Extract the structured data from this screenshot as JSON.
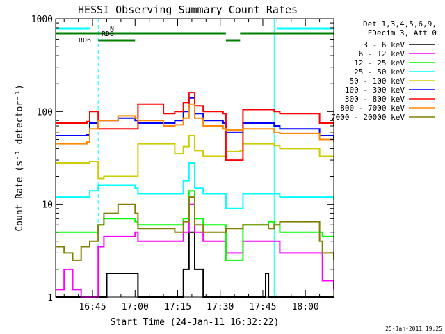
{
  "chart_data": {
    "type": "line",
    "title": "HESSI Observing Summary Count Rates",
    "xlabel": "Start Time (24-Jan-11 16:32:22)",
    "ylabel": "Count Rate (s⁻¹ detector⁻¹)",
    "yscale": "log",
    "ylim": [
      1,
      1000
    ],
    "xlim": [
      "16:32",
      "18:10"
    ],
    "xticks": [
      "16:45",
      "17:00",
      "17:15",
      "17:30",
      "17:45",
      "18:00"
    ],
    "yticks": [
      "1",
      "10",
      "100",
      "1000"
    ],
    "legend_header": [
      "Det 1,3,4,5,6,9,",
      "FDecim 3, Att 0"
    ],
    "legend_position": "right",
    "footer_timestamp": "25-Jan-2011 19:25",
    "flag_labels": {
      "N": "N",
      "RD0": "RD0",
      "RD6": "RD6"
    },
    "series": [
      {
        "name": "3 - 6 keV",
        "color": "#000000",
        "points": [
          [
            "16:32",
            1
          ],
          [
            "16:49",
            1
          ],
          [
            "16:50",
            1.8
          ],
          [
            "17:00",
            1.8
          ],
          [
            "17:01",
            1
          ],
          [
            "17:14",
            1
          ],
          [
            "17:17",
            2
          ],
          [
            "17:19",
            5
          ],
          [
            "17:21",
            2
          ],
          [
            "17:24",
            1
          ],
          [
            "17:45",
            1
          ],
          [
            "17:46",
            1.8
          ],
          [
            "17:47",
            1
          ],
          [
            "18:10",
            1
          ]
        ]
      },
      {
        "name": "6 - 12 keV",
        "color": "#ff00ff",
        "points": [
          [
            "16:32",
            1.2
          ],
          [
            "16:35",
            2
          ],
          [
            "16:38",
            1.2
          ],
          [
            "16:41",
            1
          ],
          [
            "16:45",
            1
          ],
          [
            "16:47",
            3.5
          ],
          [
            "16:49",
            4.5
          ],
          [
            "17:00",
            5
          ],
          [
            "17:01",
            4
          ],
          [
            "17:14",
            4
          ],
          [
            "17:17",
            5
          ],
          [
            "17:19",
            10
          ],
          [
            "17:21",
            5
          ],
          [
            "17:24",
            4
          ],
          [
            "17:31",
            4
          ],
          [
            "17:32",
            3
          ],
          [
            "17:37",
            3
          ],
          [
            "17:38",
            4
          ],
          [
            "17:49",
            4
          ],
          [
            "17:51",
            3
          ],
          [
            "18:05",
            3
          ],
          [
            "18:06",
            1.5
          ],
          [
            "18:10",
            1.2
          ]
        ]
      },
      {
        "name": "12 - 25 keV",
        "color": "#00ff00",
        "points": [
          [
            "16:32",
            5
          ],
          [
            "16:45",
            5
          ],
          [
            "16:47",
            6
          ],
          [
            "16:49",
            7
          ],
          [
            "17:00",
            6.5
          ],
          [
            "17:01",
            6
          ],
          [
            "17:14",
            6
          ],
          [
            "17:17",
            7
          ],
          [
            "17:19",
            14
          ],
          [
            "17:21",
            7
          ],
          [
            "17:24",
            6
          ],
          [
            "17:31",
            6
          ],
          [
            "17:32",
            2.5
          ],
          [
            "17:37",
            2.5
          ],
          [
            "17:38",
            6
          ],
          [
            "17:47",
            6.5
          ],
          [
            "17:49",
            6
          ],
          [
            "17:51",
            5
          ],
          [
            "18:05",
            5
          ],
          [
            "18:06",
            4.5
          ],
          [
            "18:10",
            4.5
          ]
        ]
      },
      {
        "name": "25 - 50 keV",
        "color": "#00ffff",
        "points": [
          [
            "16:32",
            12
          ],
          [
            "16:44",
            14
          ],
          [
            "16:47",
            16
          ],
          [
            "17:00",
            15
          ],
          [
            "17:01",
            13
          ],
          [
            "17:14",
            13
          ],
          [
            "17:17",
            18
          ],
          [
            "17:19",
            28
          ],
          [
            "17:21",
            15
          ],
          [
            "17:24",
            13
          ],
          [
            "17:31",
            13
          ],
          [
            "17:32",
            9
          ],
          [
            "17:37",
            9
          ],
          [
            "17:38",
            13
          ],
          [
            "17:47",
            13
          ],
          [
            "17:51",
            12
          ],
          [
            "18:00",
            12
          ],
          [
            "18:10",
            11
          ]
        ]
      },
      {
        "name": "50 - 100 keV",
        "color": "#cccc00",
        "points": [
          [
            "16:32",
            28
          ],
          [
            "16:44",
            29
          ],
          [
            "16:47",
            19
          ],
          [
            "16:49",
            20
          ],
          [
            "17:00",
            20
          ],
          [
            "17:01",
            45
          ],
          [
            "17:14",
            35
          ],
          [
            "17:17",
            42
          ],
          [
            "17:19",
            55
          ],
          [
            "17:21",
            38
          ],
          [
            "17:24",
            33
          ],
          [
            "17:31",
            33
          ],
          [
            "17:32",
            37
          ],
          [
            "17:37",
            38
          ],
          [
            "17:38",
            45
          ],
          [
            "17:47",
            45
          ],
          [
            "17:49",
            43
          ],
          [
            "17:51",
            40
          ],
          [
            "18:05",
            33
          ],
          [
            "18:10",
            32
          ]
        ]
      },
      {
        "name": "100 - 300 keV",
        "color": "#0000ff",
        "points": [
          [
            "16:32",
            55
          ],
          [
            "16:43",
            56
          ],
          [
            "16:44",
            75
          ],
          [
            "16:47",
            80
          ],
          [
            "16:54",
            85
          ],
          [
            "17:00",
            80
          ],
          [
            "17:01",
            75
          ],
          [
            "17:10",
            75
          ],
          [
            "17:14",
            80
          ],
          [
            "17:17",
            100
          ],
          [
            "17:19",
            140
          ],
          [
            "17:21",
            95
          ],
          [
            "17:24",
            80
          ],
          [
            "17:31",
            75
          ],
          [
            "17:32",
            60
          ],
          [
            "17:37",
            60
          ],
          [
            "17:38",
            75
          ],
          [
            "17:47",
            75
          ],
          [
            "17:49",
            70
          ],
          [
            "17:51",
            65
          ],
          [
            "18:05",
            55
          ],
          [
            "18:10",
            50
          ]
        ]
      },
      {
        "name": "300 - 800 keV",
        "color": "#ff0000",
        "points": [
          [
            "16:32",
            75
          ],
          [
            "16:43",
            78
          ],
          [
            "16:44",
            100
          ],
          [
            "16:47",
            65
          ],
          [
            "17:00",
            65
          ],
          [
            "17:01",
            120
          ],
          [
            "17:10",
            95
          ],
          [
            "17:14",
            100
          ],
          [
            "17:17",
            125
          ],
          [
            "17:19",
            160
          ],
          [
            "17:21",
            115
          ],
          [
            "17:24",
            100
          ],
          [
            "17:31",
            95
          ],
          [
            "17:32",
            30
          ],
          [
            "17:37",
            30
          ],
          [
            "17:38",
            105
          ],
          [
            "17:47",
            105
          ],
          [
            "17:49",
            100
          ],
          [
            "17:51",
            95
          ],
          [
            "18:05",
            75
          ],
          [
            "18:10",
            70
          ]
        ]
      },
      {
        "name": "800 - 7000 keV",
        "color": "#ff8800",
        "points": [
          [
            "16:32",
            45
          ],
          [
            "16:43",
            47
          ],
          [
            "16:44",
            65
          ],
          [
            "16:47",
            80
          ],
          [
            "16:54",
            90
          ],
          [
            "17:00",
            85
          ],
          [
            "17:01",
            80
          ],
          [
            "17:10",
            70
          ],
          [
            "17:14",
            72
          ],
          [
            "17:17",
            85
          ],
          [
            "17:19",
            120
          ],
          [
            "17:21",
            85
          ],
          [
            "17:24",
            70
          ],
          [
            "17:31",
            65
          ],
          [
            "17:32",
            63
          ],
          [
            "17:37",
            63
          ],
          [
            "17:38",
            65
          ],
          [
            "17:47",
            65
          ],
          [
            "17:49",
            60
          ],
          [
            "17:51",
            58
          ],
          [
            "18:05",
            50
          ],
          [
            "18:10",
            47
          ]
        ]
      },
      {
        "name": "7000 - 20000 keV",
        "color": "#808000",
        "points": [
          [
            "16:32",
            3.5
          ],
          [
            "16:35",
            3
          ],
          [
            "16:38",
            2.5
          ],
          [
            "16:41",
            3.5
          ],
          [
            "16:44",
            4
          ],
          [
            "16:47",
            6
          ],
          [
            "16:49",
            8
          ],
          [
            "16:54",
            10
          ],
          [
            "17:00",
            8
          ],
          [
            "17:01",
            5.5
          ],
          [
            "17:14",
            5
          ],
          [
            "17:17",
            6.5
          ],
          [
            "17:19",
            12
          ],
          [
            "17:21",
            6
          ],
          [
            "17:24",
            5
          ],
          [
            "17:31",
            5
          ],
          [
            "17:32",
            5.5
          ],
          [
            "17:37",
            5.5
          ],
          [
            "17:38",
            6
          ],
          [
            "17:47",
            5.5
          ],
          [
            "17:49",
            6
          ],
          [
            "17:51",
            6.5
          ],
          [
            "18:05",
            4
          ],
          [
            "18:06",
            3
          ],
          [
            "18:10",
            2.5
          ]
        ]
      }
    ],
    "flags": [
      {
        "name": "N",
        "color": "#00ffff",
        "level": 0,
        "intervals": [
          [
            "16:32",
            "16:44"
          ],
          [
            "17:50",
            "18:10"
          ]
        ]
      },
      {
        "name": "RD0",
        "color": "#008000",
        "level": 1,
        "intervals": [
          [
            "16:32",
            "17:32"
          ],
          [
            "17:37",
            "18:10"
          ]
        ]
      },
      {
        "name": "RD6",
        "color": "#008000",
        "level": 2,
        "intervals": [
          [
            "16:47",
            "17:00"
          ],
          [
            "17:32",
            "17:37"
          ]
        ]
      }
    ],
    "vertical_lines": [
      {
        "time": "16:32",
        "style": "solid",
        "color": "#00ffff"
      },
      {
        "time": "16:47",
        "style": "dashed",
        "color": "#00ffff"
      },
      {
        "time": "17:49",
        "style": "solid",
        "color": "#00ffff"
      },
      {
        "time": "18:10",
        "style": "dashed",
        "color": "#00ffff"
      }
    ]
  }
}
